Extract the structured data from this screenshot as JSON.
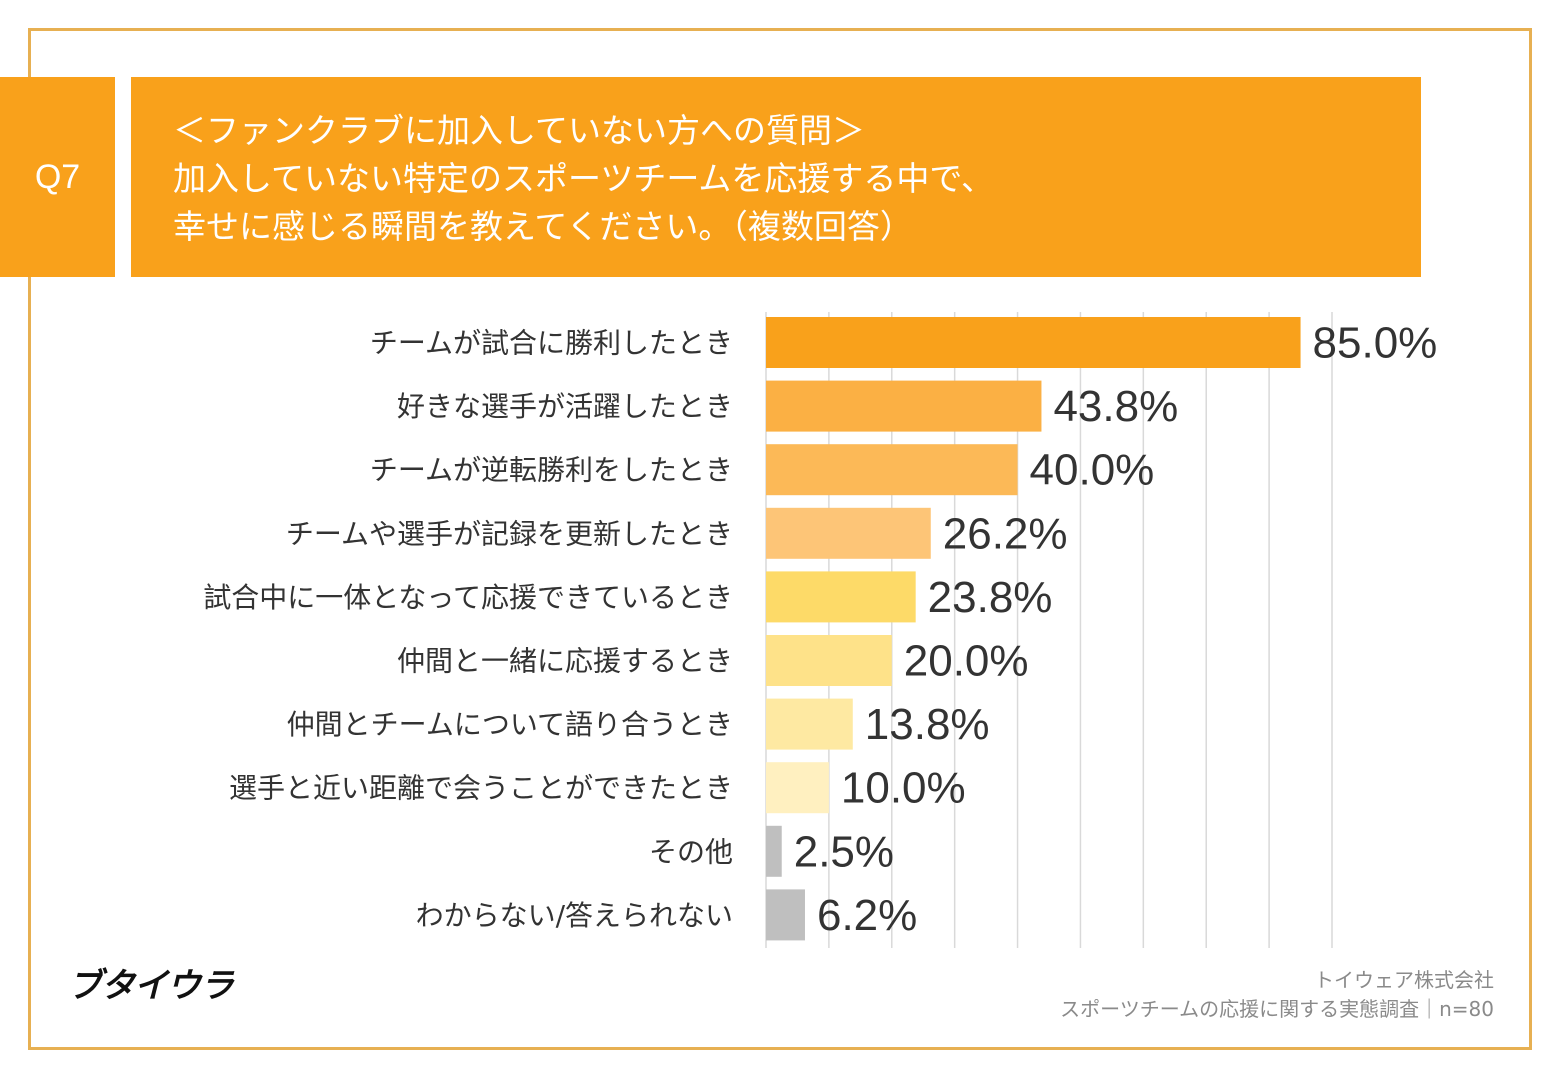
{
  "header": {
    "question_no": "Q7",
    "title_lines": [
      "＜ファンクラブに加入していない方への質問＞",
      "加入していない特定のスポーツチームを応援する中で、",
      "幸せに感じる瞬間を教えてください。（複数回答）"
    ]
  },
  "chart_data": {
    "type": "bar",
    "orientation": "horizontal",
    "categories": [
      "チームが試合に勝利したとき",
      "好きな選手が活躍したとき",
      "チームが逆転勝利をしたとき",
      "チームや選手が記録を更新したとき",
      "試合中に一体となって応援できているとき",
      "仲間と一緒に応援するとき",
      "仲間とチームについて語り合うとき",
      "選手と近い距離で会うことができたとき",
      "その他",
      "わからない/答えられない"
    ],
    "values": [
      85.0,
      43.8,
      40.0,
      26.2,
      23.8,
      20.0,
      13.8,
      10.0,
      2.5,
      6.2
    ],
    "data_labels": [
      "85.0%",
      "43.8%",
      "40.0%",
      "26.2%",
      "23.8%",
      "20.0%",
      "13.8%",
      "10.0%",
      "2.5%",
      "6.2%"
    ],
    "colors": [
      "#F9A11B",
      "#FBB044",
      "#FCB957",
      "#FDC577",
      "#FDDA68",
      "#FEE289",
      "#FEE9A2",
      "#FFF0C0",
      "#BFBFBF",
      "#BFBFBF"
    ],
    "xlim": [
      0,
      90
    ],
    "grid": true,
    "unit": "%"
  },
  "footer": {
    "logo": "ブタイウラ",
    "company": "トイウェア株式会社",
    "survey": "スポーツチームの応援に関する実態調査｜n=80"
  }
}
